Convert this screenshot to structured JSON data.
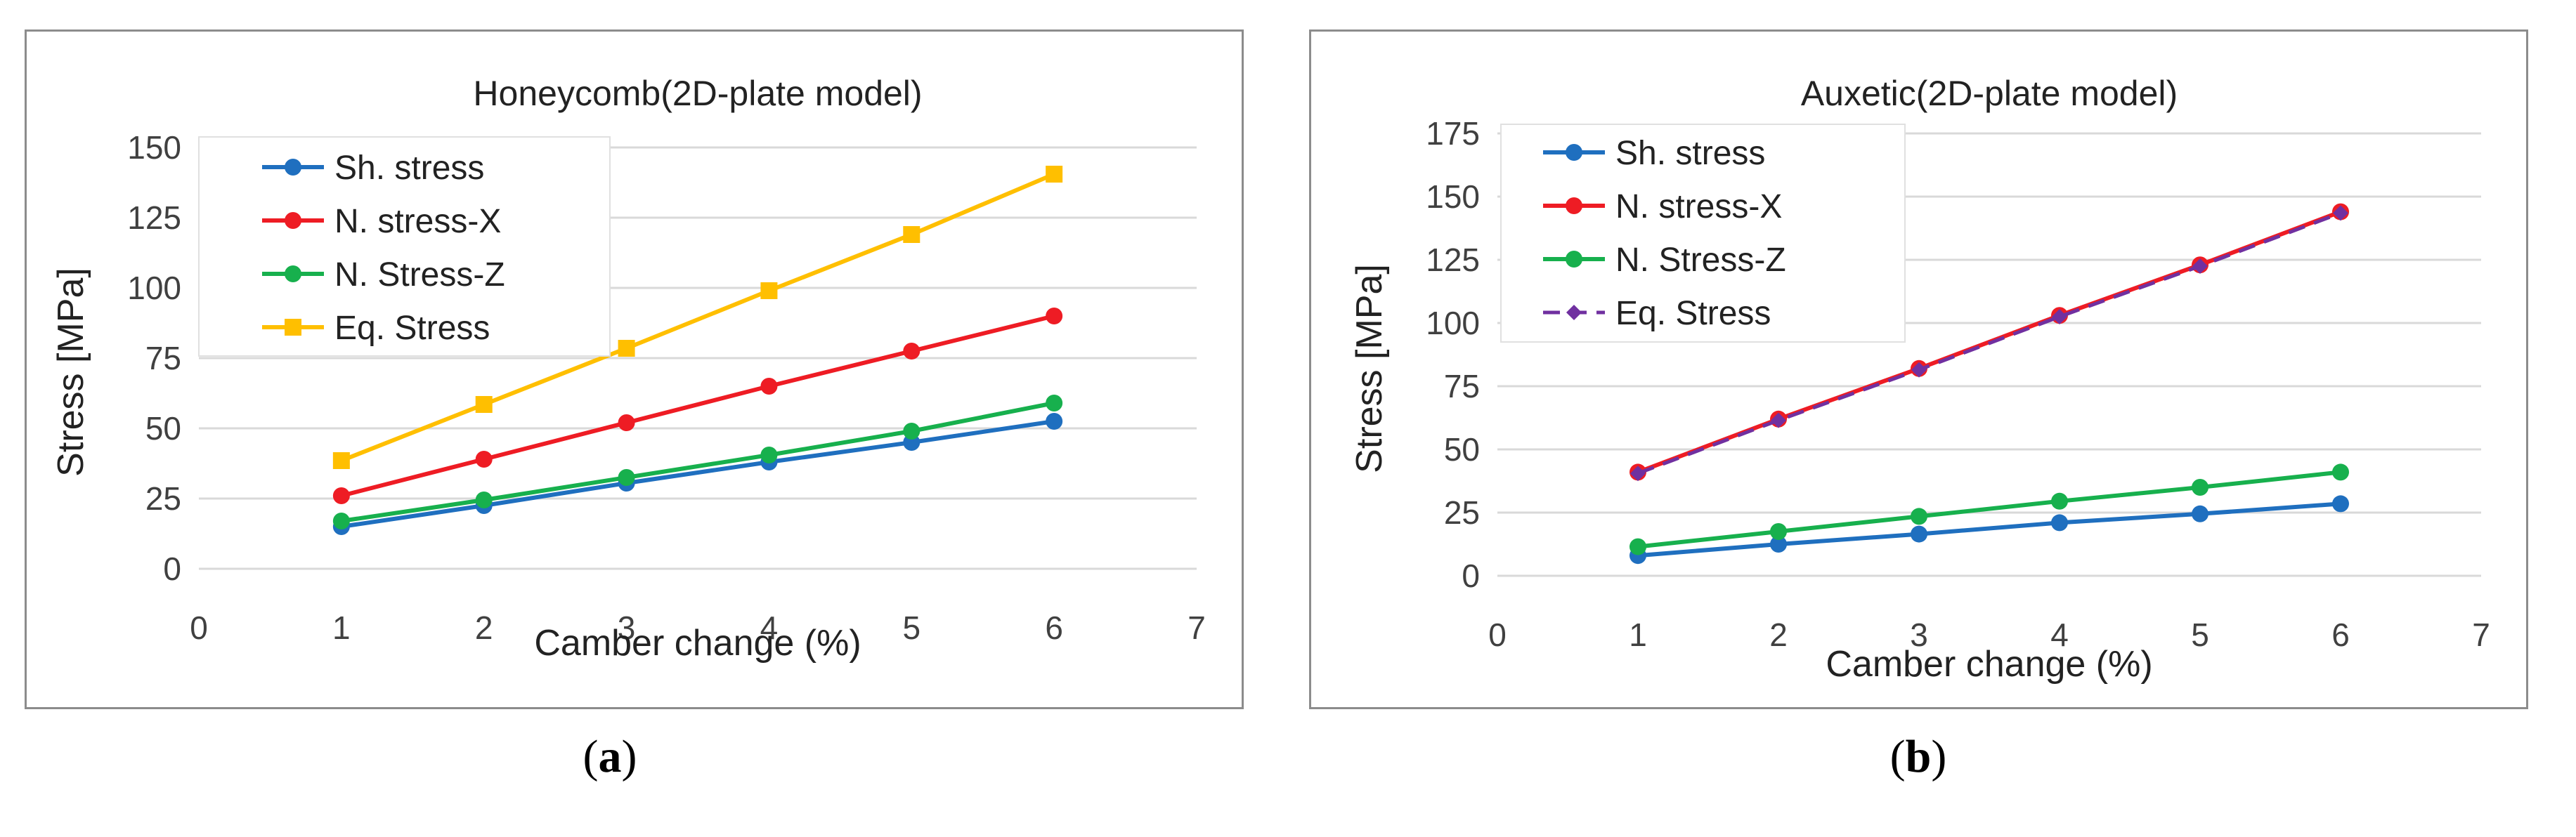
{
  "chart_data": [
    {
      "type": "line",
      "panel": "a",
      "title": "Honeycomb(2D-plate model)",
      "xlabel": "Camber change (%)",
      "ylabel": "Stress [MPa]",
      "xlim": [
        0,
        7
      ],
      "ylim": [
        0,
        150
      ],
      "xticks": [
        0,
        1,
        2,
        3,
        4,
        5,
        6,
        7
      ],
      "yticks": [
        0,
        25,
        50,
        75,
        100,
        125,
        150
      ],
      "grid": "horizontal",
      "legend_position": "top-left",
      "x": [
        1,
        2,
        3,
        4,
        5,
        6
      ],
      "series": [
        {
          "name": "Sh. stress",
          "color": "#1f6fbf",
          "marker": "circle",
          "dash": "solid",
          "values": [
            15,
            22.5,
            30.5,
            38,
            45,
            52.5
          ]
        },
        {
          "name": "N. stress-X",
          "color": "#ee1c24",
          "marker": "circle",
          "dash": "solid",
          "values": [
            26,
            39,
            52,
            65,
            77.5,
            90
          ]
        },
        {
          "name": "N. Stress-Z",
          "color": "#17b04d",
          "marker": "circle",
          "dash": "solid",
          "values": [
            17,
            24.5,
            32.5,
            40.5,
            49,
            59
          ]
        },
        {
          "name": "Eq. Stress",
          "color": "#ffbf00",
          "marker": "square",
          "dash": "solid",
          "values": [
            38.5,
            58.5,
            78.5,
            99,
            119,
            140.5
          ]
        }
      ]
    },
    {
      "type": "line",
      "panel": "b",
      "title": "Auxetic(2D-plate model)",
      "xlabel": "Camber change (%)",
      "ylabel": "Stress [MPa]",
      "xlim": [
        0,
        7
      ],
      "ylim": [
        0,
        175
      ],
      "xticks": [
        0,
        1,
        2,
        3,
        4,
        5,
        6,
        7
      ],
      "yticks": [
        0,
        25,
        50,
        75,
        100,
        125,
        150,
        175
      ],
      "grid": "horizontal",
      "legend_position": "top-left",
      "x": [
        1,
        2,
        3,
        4,
        5,
        6
      ],
      "series": [
        {
          "name": "Sh. stress",
          "color": "#1f6fbf",
          "marker": "circle",
          "dash": "solid",
          "values": [
            8,
            12.5,
            16.5,
            21,
            24.5,
            28.5
          ]
        },
        {
          "name": "N. stress-X",
          "color": "#ee1c24",
          "marker": "circle",
          "dash": "solid",
          "values": [
            41,
            62,
            82,
            103,
            123,
            144
          ]
        },
        {
          "name": "N. Stress-Z",
          "color": "#17b04d",
          "marker": "circle",
          "dash": "solid",
          "values": [
            11.5,
            17.5,
            23.5,
            29.5,
            35,
            41
          ]
        },
        {
          "name": "Eq. Stress",
          "color": "#7030a0",
          "marker": "diamond",
          "dash": "dashed",
          "values": [
            40.5,
            61.5,
            81.5,
            102.5,
            122.5,
            143.5
          ]
        }
      ]
    }
  ],
  "subfigure_labels": {
    "a": {
      "open": "(",
      "letter": "a",
      "close": ")"
    },
    "b": {
      "open": "(",
      "letter": "b",
      "close": ")"
    }
  }
}
